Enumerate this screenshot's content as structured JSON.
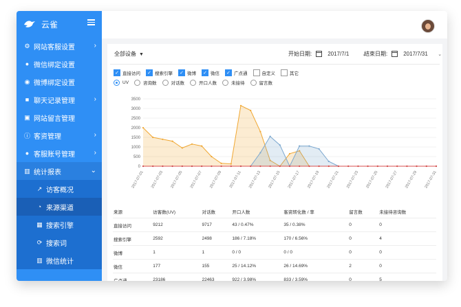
{
  "app": {
    "title": "云雀"
  },
  "sidebar": {
    "items": [
      {
        "label": "网站客服设置",
        "icon": "gear-icon",
        "chevron": "›"
      },
      {
        "label": "微信绑定设置",
        "icon": "wechat-icon",
        "chevron": ""
      },
      {
        "label": "微博绑定设置",
        "icon": "weibo-icon",
        "chevron": ""
      },
      {
        "label": "聊天记录管理",
        "icon": "chat-record-icon",
        "chevron": "›"
      },
      {
        "label": "网站留言管理",
        "icon": "message-icon",
        "chevron": ""
      },
      {
        "label": "客资管理",
        "icon": "info-icon",
        "chevron": "›"
      },
      {
        "label": "客服账号管理",
        "icon": "users-icon",
        "chevron": "›"
      },
      {
        "label": "统计报表",
        "icon": "bar-chart-icon",
        "chevron": "⌄"
      }
    ],
    "subitems": [
      {
        "label": "访客概况",
        "icon": "trend-icon"
      },
      {
        "label": "来源渠道",
        "icon": "pie-icon"
      },
      {
        "label": "搜索引擎",
        "icon": "grid-icon"
      },
      {
        "label": "搜索词",
        "icon": "refresh-icon"
      },
      {
        "label": "微信统计",
        "icon": "stats-icon"
      }
    ]
  },
  "filters": {
    "device": "全部设备",
    "start_label": "开始日期:",
    "start_date": "2017/7/1",
    "end_label": "结束日期:",
    "end_date": "2017/7/31"
  },
  "sources": [
    {
      "label": "直接访问",
      "checked": true
    },
    {
      "label": "搜索引擎",
      "checked": true
    },
    {
      "label": "微博",
      "checked": true
    },
    {
      "label": "微信",
      "checked": true
    },
    {
      "label": "广点通",
      "checked": true
    },
    {
      "label": "自定义",
      "checked": false
    },
    {
      "label": "其它",
      "checked": false
    }
  ],
  "metrics": [
    {
      "label": "UV",
      "selected": true
    },
    {
      "label": "咨询数",
      "selected": false
    },
    {
      "label": "对话数",
      "selected": false
    },
    {
      "label": "开口人数",
      "selected": false
    },
    {
      "label": "未接待",
      "selected": false
    },
    {
      "label": "留言数",
      "selected": false
    }
  ],
  "chart_data": {
    "type": "area",
    "ylim": [
      0,
      3500
    ],
    "yticks": [
      0,
      500,
      1000,
      1500,
      2000,
      2500,
      3000,
      3500
    ],
    "x": [
      "2017-07-01",
      "2017-07-02",
      "2017-07-03",
      "2017-07-04",
      "2017-07-05",
      "2017-07-06",
      "2017-07-07",
      "2017-07-08",
      "2017-07-09",
      "2017-07-10",
      "2017-07-11",
      "2017-07-12",
      "2017-07-13",
      "2017-07-14",
      "2017-07-15",
      "2017-07-16",
      "2017-07-17",
      "2017-07-18",
      "2017-07-19",
      "2017-07-20",
      "2017-07-21",
      "2017-07-22",
      "2017-07-23",
      "2017-07-24",
      "2017-07-25",
      "2017-07-26",
      "2017-07-27",
      "2017-07-28",
      "2017-07-29",
      "2017-07-30",
      "2017-07-31"
    ],
    "xticks": [
      "2017-07-01",
      "2017-07-03",
      "2017-07-05",
      "2017-07-07",
      "2017-07-09",
      "2017-07-11",
      "2017-07-13",
      "2017-07-15",
      "2017-07-17",
      "2017-07-19",
      "2017-07-21",
      "2017-07-23",
      "2017-07-25",
      "2017-07-27",
      "2017-07-29",
      "2017-07-31"
    ],
    "series": [
      {
        "color": "#f0a732",
        "values": [
          2000,
          1500,
          1400,
          1300,
          950,
          1150,
          1050,
          500,
          150,
          120,
          3150,
          2900,
          1800,
          300,
          0,
          650,
          800,
          0,
          0,
          0,
          0,
          0,
          0,
          0,
          0,
          0,
          0,
          0,
          0,
          0,
          0
        ]
      },
      {
        "color": "#7ba7cf",
        "values": [
          0,
          0,
          0,
          0,
          0,
          0,
          0,
          0,
          0,
          0,
          0,
          0,
          700,
          1550,
          1100,
          0,
          1050,
          1050,
          900,
          250,
          0,
          0,
          0,
          0,
          0,
          0,
          0,
          0,
          0,
          0,
          0
        ]
      },
      {
        "color": "#d94e4e",
        "values": [
          0,
          0,
          0,
          0,
          0,
          0,
          0,
          0,
          0,
          0,
          0,
          0,
          0,
          0,
          0,
          0,
          0,
          0,
          0,
          0,
          0,
          0,
          0,
          0,
          0,
          0,
          0,
          0,
          0,
          0,
          0
        ]
      }
    ]
  },
  "table": {
    "headers": [
      "来源",
      "访客数(UV)",
      "对话数",
      "开口人数",
      "客资转化数 / 率",
      "留言数",
      "未接待咨询数"
    ],
    "rows": [
      [
        "直接访问",
        "9212",
        "9717",
        "43 / 0.47%",
        "35 / 0.38%",
        "0",
        "0"
      ],
      [
        "搜索引擎",
        "2592",
        "2498",
        "186 / 7.18%",
        "170 / 6.56%",
        "0",
        "4"
      ],
      [
        "微博",
        "1",
        "1",
        "0 / 0",
        "0 / 0",
        "0",
        "0"
      ],
      [
        "微信",
        "177",
        "155",
        "25 / 14.12%",
        "26 / 14.69%",
        "2",
        "0"
      ],
      [
        "广点通",
        "23186",
        "22463",
        "922 / 3.98%",
        "833 / 3.59%",
        "0",
        "5"
      ]
    ]
  }
}
